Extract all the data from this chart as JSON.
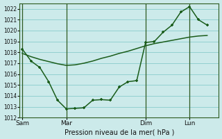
{
  "background_color": "#cceaea",
  "grid_color": "#88cccc",
  "line_color": "#1a5c1a",
  "title": "Pression niveau de la mer( hPa )",
  "ylim": [
    1012,
    1022.5
  ],
  "yticks": [
    1012,
    1013,
    1014,
    1015,
    1016,
    1017,
    1018,
    1019,
    1020,
    1021,
    1022
  ],
  "xtick_labels": [
    "Sam",
    "Mar",
    "Dim",
    "Lun"
  ],
  "xtick_positions": [
    0,
    5,
    14,
    19
  ],
  "vline_positions": [
    0,
    5,
    14,
    19
  ],
  "xlim": [
    -0.3,
    22.3
  ],
  "series1_x": [
    0,
    1,
    2,
    3,
    4,
    5,
    6,
    7,
    8,
    9,
    10,
    11,
    12,
    13,
    14,
    15,
    16,
    17,
    18,
    19,
    20,
    21
  ],
  "series1_y": [
    1018.3,
    1017.2,
    1016.6,
    1015.3,
    1013.6,
    1012.8,
    1012.85,
    1012.9,
    1013.6,
    1013.65,
    1013.6,
    1014.8,
    1015.3,
    1015.4,
    1018.9,
    1019.0,
    1019.85,
    1020.5,
    1021.7,
    1022.2,
    1021.0,
    1020.5
  ],
  "series2_x": [
    0,
    1,
    2,
    3,
    4,
    5,
    6,
    7,
    8,
    9,
    10,
    11,
    12,
    13,
    14,
    15,
    16,
    17,
    18,
    19,
    20,
    21
  ],
  "series2_y": [
    1017.9,
    1017.6,
    1017.35,
    1017.15,
    1016.95,
    1016.8,
    1016.85,
    1017.0,
    1017.2,
    1017.45,
    1017.65,
    1017.9,
    1018.1,
    1018.35,
    1018.6,
    1018.8,
    1018.95,
    1019.1,
    1019.25,
    1019.4,
    1019.5,
    1019.55
  ],
  "marker": "P",
  "marker_size": 3.5,
  "linewidth": 1.1
}
